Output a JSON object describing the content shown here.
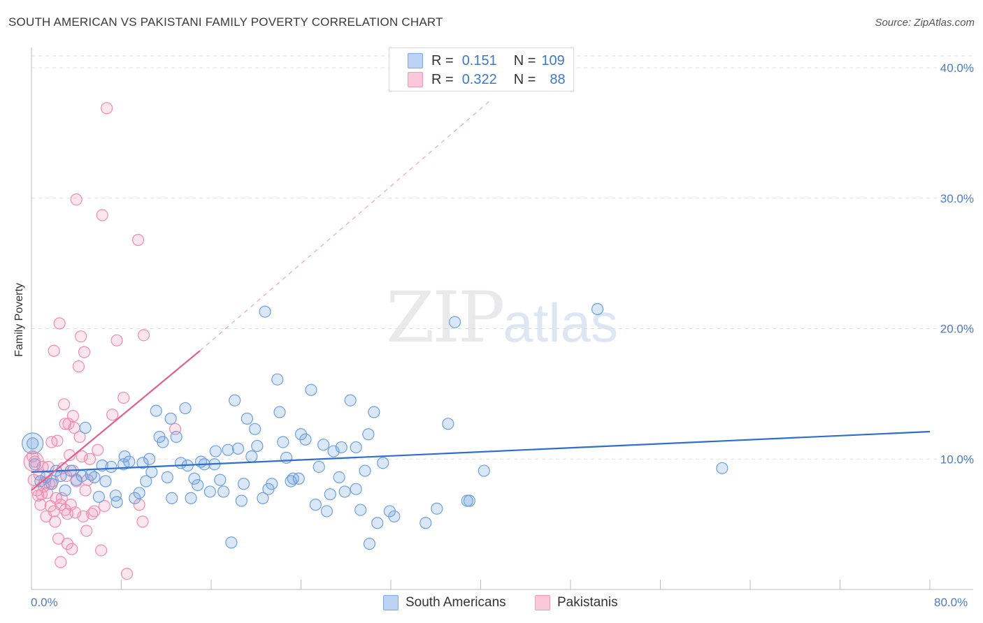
{
  "title": "SOUTH AMERICAN VS PAKISTANI FAMILY POVERTY CORRELATION CHART",
  "source": "Source: ZipAtlas.com",
  "watermark": {
    "zip": "ZIP",
    "atlas": "atlas"
  },
  "colors": {
    "blue": "#6d9fe0",
    "blue_line": "#2f6fcc",
    "pink": "#f08cae",
    "pink_line": "#e0608a",
    "grid": "#dddddd",
    "tick_text": "#4a7cc7"
  },
  "legend": {
    "rows": [
      {
        "r_label": "R =",
        "r_value": "0.151",
        "n_label": "N =",
        "n_value": "109"
      },
      {
        "r_label": "R =",
        "r_value": "0.322",
        "n_label": "N =",
        "n_value": "88"
      }
    ]
  },
  "bottom_legend": {
    "south": "South Americans",
    "pak": "Pakistanis"
  },
  "chart_data": {
    "type": "scatter",
    "title": "SOUTH AMERICAN VS PAKISTANI FAMILY POVERTY CORRELATION CHART",
    "xlabel": "",
    "ylabel": "Family Poverty",
    "xlim": [
      0,
      80
    ],
    "ylim": [
      0,
      40
    ],
    "x_tick_labels": [
      "0.0%",
      "80.0%"
    ],
    "y_ticks": [
      10,
      20,
      30,
      40
    ],
    "y_tick_labels": [
      "10.0%",
      "20.0%",
      "30.0%",
      "40.0%"
    ],
    "x_ticks_minor": [
      0,
      8,
      16,
      24,
      32,
      40,
      48,
      56,
      64,
      72,
      80
    ],
    "grid": true,
    "legend_position": "top-center",
    "series": [
      {
        "name": "South Americans",
        "r": 0.151,
        "n": 109,
        "trend": {
          "x0": 0,
          "y0": 9.0,
          "x1": 80,
          "y1": 12.1
        },
        "points": [
          [
            0.1,
            11.2
          ],
          [
            0.3,
            9.6
          ],
          [
            0.8,
            8.3
          ],
          [
            1.3,
            8.6
          ],
          [
            1.8,
            8.1
          ],
          [
            2.2,
            9.1
          ],
          [
            2.6,
            8.7
          ],
          [
            3.0,
            7.6
          ],
          [
            3.5,
            9.1
          ],
          [
            4.0,
            8.4
          ],
          [
            4.5,
            8.7
          ],
          [
            4.8,
            12.4
          ],
          [
            5.3,
            8.8
          ],
          [
            5.6,
            8.6
          ],
          [
            6.0,
            7.1
          ],
          [
            6.3,
            9.5
          ],
          [
            6.6,
            8.3
          ],
          [
            7.1,
            9.4
          ],
          [
            7.5,
            7.2
          ],
          [
            7.6,
            6.7
          ],
          [
            8.2,
            9.6
          ],
          [
            8.3,
            10.2
          ],
          [
            8.7,
            9.8
          ],
          [
            9.2,
            7.0
          ],
          [
            9.6,
            7.4
          ],
          [
            9.9,
            9.7
          ],
          [
            10.2,
            8.3
          ],
          [
            10.5,
            10.0
          ],
          [
            10.7,
            9.0
          ],
          [
            11.1,
            13.7
          ],
          [
            11.4,
            11.7
          ],
          [
            11.7,
            11.3
          ],
          [
            12.1,
            8.6
          ],
          [
            12.4,
            13.1
          ],
          [
            12.5,
            7.0
          ],
          [
            12.9,
            11.7
          ],
          [
            13.3,
            9.7
          ],
          [
            13.7,
            13.9
          ],
          [
            13.9,
            9.5
          ],
          [
            14.2,
            7.0
          ],
          [
            14.5,
            8.5
          ],
          [
            14.8,
            8.0
          ],
          [
            15.1,
            9.8
          ],
          [
            15.4,
            9.6
          ],
          [
            15.9,
            7.5
          ],
          [
            16.3,
            9.6
          ],
          [
            16.4,
            10.6
          ],
          [
            16.8,
            8.4
          ],
          [
            17.1,
            7.5
          ],
          [
            17.5,
            10.7
          ],
          [
            17.8,
            3.6
          ],
          [
            18.1,
            14.5
          ],
          [
            18.4,
            10.8
          ],
          [
            18.7,
            6.8
          ],
          [
            18.9,
            8.1
          ],
          [
            19.2,
            13.1
          ],
          [
            19.6,
            10.2
          ],
          [
            19.9,
            12.3
          ],
          [
            20.1,
            11.0
          ],
          [
            20.6,
            7.0
          ],
          [
            20.8,
            21.3
          ],
          [
            21.1,
            7.7
          ],
          [
            21.4,
            8.1
          ],
          [
            21.9,
            16.1
          ],
          [
            22.1,
            13.6
          ],
          [
            22.4,
            11.3
          ],
          [
            22.7,
            10.1
          ],
          [
            23.1,
            8.3
          ],
          [
            23.3,
            8.5
          ],
          [
            23.8,
            8.5
          ],
          [
            24.0,
            11.9
          ],
          [
            24.4,
            11.5
          ],
          [
            24.9,
            15.3
          ],
          [
            25.3,
            6.5
          ],
          [
            25.6,
            9.4
          ],
          [
            26.0,
            11.1
          ],
          [
            26.3,
            6.0
          ],
          [
            26.6,
            7.3
          ],
          [
            26.9,
            10.6
          ],
          [
            27.4,
            8.6
          ],
          [
            27.6,
            10.9
          ],
          [
            27.9,
            7.5
          ],
          [
            28.4,
            14.5
          ],
          [
            28.9,
            10.9
          ],
          [
            28.9,
            7.7
          ],
          [
            29.3,
            6.1
          ],
          [
            29.7,
            9.1
          ],
          [
            30.0,
            11.9
          ],
          [
            30.1,
            3.5
          ],
          [
            30.5,
            13.6
          ],
          [
            30.8,
            5.1
          ],
          [
            31.3,
            9.7
          ],
          [
            31.9,
            6.0
          ],
          [
            32.3,
            5.6
          ],
          [
            35.1,
            5.1
          ],
          [
            36.1,
            6.2
          ],
          [
            37.1,
            12.7
          ],
          [
            37.7,
            20.5
          ],
          [
            38.8,
            6.8
          ],
          [
            39.0,
            6.8
          ],
          [
            40.3,
            9.1
          ],
          [
            50.4,
            21.5
          ],
          [
            61.5,
            9.3
          ]
        ]
      },
      {
        "name": "Pakistanis",
        "r": 0.322,
        "n": 88,
        "trend": {
          "x0": 0,
          "y0": 7.6,
          "x1": 15,
          "y1": 18.3
        },
        "trend_extension": {
          "x0": 15,
          "y0": 18.3,
          "x1": 41,
          "y1": 37.6
        },
        "points": [
          [
            0.1,
            10.2
          ],
          [
            0.2,
            8.4
          ],
          [
            0.3,
            9.8
          ],
          [
            0.5,
            7.6
          ],
          [
            0.6,
            7.2
          ],
          [
            0.7,
            8.8
          ],
          [
            0.8,
            6.5
          ],
          [
            0.9,
            7.3
          ],
          [
            1.0,
            9.4
          ],
          [
            1.1,
            7.9
          ],
          [
            1.2,
            8.2
          ],
          [
            1.3,
            5.6
          ],
          [
            1.4,
            7.4
          ],
          [
            1.5,
            9.4
          ],
          [
            1.6,
            8.1
          ],
          [
            1.7,
            6.4
          ],
          [
            1.8,
            11.3
          ],
          [
            1.9,
            8.3
          ],
          [
            2.0,
            6.0
          ],
          [
            2.0,
            18.3
          ],
          [
            2.1,
            5.2
          ],
          [
            2.2,
            7.0
          ],
          [
            2.3,
            11.4
          ],
          [
            2.4,
            3.9
          ],
          [
            2.5,
            20.4
          ],
          [
            2.6,
            6.5
          ],
          [
            2.6,
            2.1
          ],
          [
            2.7,
            7.0
          ],
          [
            2.8,
            9.3
          ],
          [
            2.9,
            14.2
          ],
          [
            3.0,
            12.7
          ],
          [
            3.0,
            6.1
          ],
          [
            3.1,
            8.7
          ],
          [
            3.2,
            5.8
          ],
          [
            3.2,
            3.5
          ],
          [
            3.3,
            12.7
          ],
          [
            3.4,
            10.3
          ],
          [
            3.5,
            6.5
          ],
          [
            3.6,
            3.1
          ],
          [
            3.7,
            13.3
          ],
          [
            3.7,
            9.1
          ],
          [
            3.8,
            12.4
          ],
          [
            3.9,
            5.9
          ],
          [
            4.0,
            8.3
          ],
          [
            4.0,
            29.9
          ],
          [
            4.2,
            17.1
          ],
          [
            4.3,
            11.7
          ],
          [
            4.4,
            19.4
          ],
          [
            4.5,
            10.2
          ],
          [
            4.6,
            5.6
          ],
          [
            4.7,
            18.2
          ],
          [
            4.8,
            7.6
          ],
          [
            4.9,
            4.5
          ],
          [
            5.0,
            8.4
          ],
          [
            5.2,
            10.0
          ],
          [
            5.4,
            5.8
          ],
          [
            5.6,
            6.0
          ],
          [
            5.9,
            10.7
          ],
          [
            6.2,
            3.0
          ],
          [
            6.3,
            28.7
          ],
          [
            6.5,
            6.4
          ],
          [
            6.7,
            36.9
          ],
          [
            7.2,
            13.4
          ],
          [
            7.6,
            19.1
          ],
          [
            8.2,
            14.7
          ],
          [
            8.5,
            1.2
          ],
          [
            9.5,
            26.8
          ],
          [
            9.6,
            6.5
          ],
          [
            9.9,
            5.2
          ],
          [
            10.0,
            19.5
          ],
          [
            12.8,
            12.3
          ]
        ]
      }
    ]
  }
}
